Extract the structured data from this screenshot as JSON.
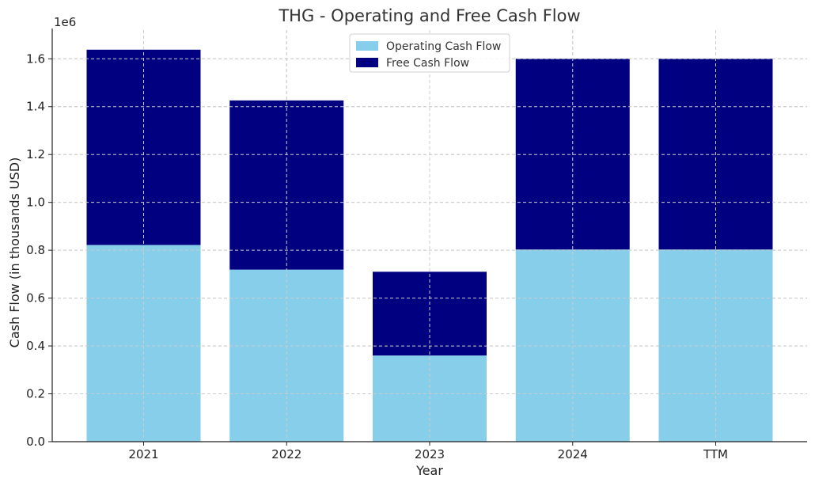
{
  "chart_data": {
    "type": "bar",
    "stacked": true,
    "title": "THG - Operating and Free Cash Flow",
    "xlabel": "Year",
    "ylabel": "Cash Flow (in thousands USD)",
    "y_offset_label": "1e6",
    "categories": [
      "2021",
      "2022",
      "2023",
      "2024",
      "TTM"
    ],
    "series": [
      {
        "name": "Operating Cash Flow",
        "color": "#87ceeb",
        "values": [
          822000,
          719000,
          360000,
          803000,
          803000
        ]
      },
      {
        "name": "Free Cash Flow",
        "color": "#000080",
        "values": [
          816000,
          707000,
          350000,
          797000,
          797000
        ]
      }
    ],
    "ylim": [
      0,
      1720000
    ],
    "yticks": [
      0,
      200000,
      400000,
      600000,
      800000,
      1000000,
      1200000,
      1400000,
      1600000
    ],
    "ytick_labels": [
      "0.0",
      "0.2",
      "0.4",
      "0.6",
      "0.8",
      "1.0",
      "1.2",
      "1.4",
      "1.6"
    ],
    "grid": true,
    "legend_position": "top-center"
  }
}
